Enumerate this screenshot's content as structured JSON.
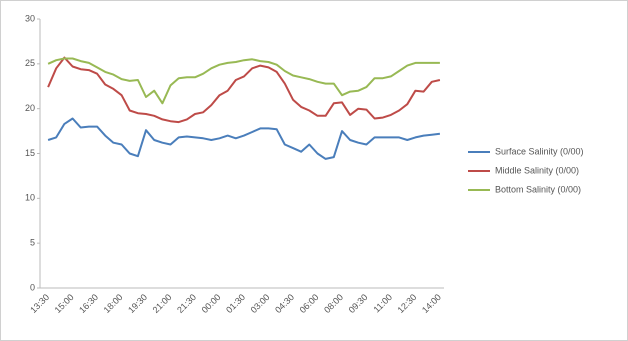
{
  "chart_data": {
    "type": "line",
    "categories": [
      "13:30",
      null,
      null,
      "15:00",
      null,
      null,
      "16:30",
      null,
      null,
      "18:00",
      null,
      null,
      "19:30",
      null,
      null,
      "21:00",
      null,
      null,
      "21:30",
      null,
      null,
      "00:00",
      null,
      null,
      "01:30",
      null,
      null,
      "03:00",
      null,
      null,
      "04:30",
      null,
      null,
      "06:00",
      null,
      null,
      "08:00",
      null,
      null,
      "09:30",
      null,
      null,
      "11:00",
      null,
      null,
      "12:30",
      null,
      null,
      "14:00"
    ],
    "series": [
      {
        "name": "Surface Salinity (0/00)",
        "color": "#4a7ebb",
        "values": [
          16.5,
          16.8,
          18.3,
          18.9,
          17.9,
          18,
          18,
          17,
          16.2,
          16,
          15,
          14.7,
          17.6,
          16.5,
          16.2,
          16,
          16.8,
          16.9,
          16.8,
          16.7,
          16.5,
          16.7,
          17,
          16.7,
          17,
          17.4,
          17.8,
          17.8,
          17.7,
          16,
          15.6,
          15.2,
          16,
          15,
          14.4,
          14.6,
          17.5,
          16.5,
          16.2,
          16,
          16.8,
          16.8,
          16.8,
          16.8,
          16.5,
          16.8,
          17,
          17.1,
          17.2
        ]
      },
      {
        "name": "Middle Salinity (0/00)",
        "color": "#be4b48",
        "values": [
          22.4,
          24.5,
          25.7,
          24.7,
          24.4,
          24.3,
          23.9,
          22.7,
          22.2,
          21.5,
          19.8,
          19.5,
          19.4,
          19.2,
          18.8,
          18.6,
          18.5,
          18.8,
          19.4,
          19.6,
          20.4,
          21.5,
          22,
          23.2,
          23.6,
          24.5,
          24.8,
          24.6,
          24.1,
          22.8,
          21,
          20.2,
          19.8,
          19.2,
          19.2,
          20.6,
          20.7,
          19.3,
          20,
          19.9,
          18.9,
          19,
          19.3,
          19.8,
          20.5,
          22,
          21.9,
          23,
          23.2
        ]
      },
      {
        "name": "Bottom Salinity (0/00)",
        "color": "#98b954",
        "values": [
          25,
          25.4,
          25.6,
          25.6,
          25.3,
          25.1,
          24.6,
          24.1,
          23.8,
          23.3,
          23.1,
          23.2,
          21.3,
          22,
          20.6,
          22.6,
          23.4,
          23.5,
          23.5,
          23.9,
          24.5,
          24.9,
          25.1,
          25.2,
          25.4,
          25.5,
          25.3,
          25.2,
          24.9,
          24.2,
          23.7,
          23.5,
          23.3,
          23,
          22.8,
          22.8,
          21.5,
          21.9,
          22,
          22.4,
          23.4,
          23.4,
          23.6,
          24.2,
          24.8,
          25.1,
          25.1,
          25.1,
          25.1
        ]
      }
    ],
    "ylim": [
      0,
      30
    ],
    "yticks": [
      0,
      5,
      10,
      15,
      20,
      25,
      30
    ],
    "grid": false,
    "legend": "right"
  }
}
